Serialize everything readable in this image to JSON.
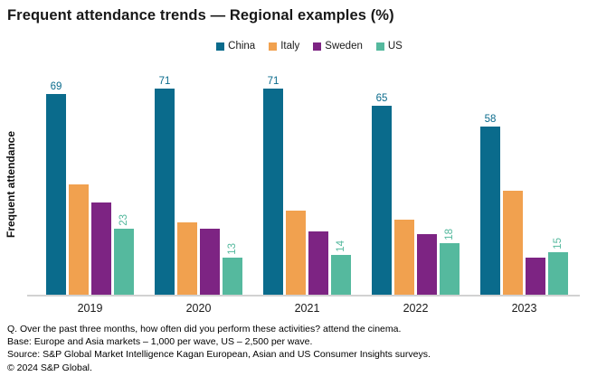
{
  "title": "Frequent attendance trends — Regional examples (%)",
  "chart_data": {
    "type": "bar",
    "title": "Frequent attendance trends — Regional examples (%)",
    "categories": [
      "2019",
      "2020",
      "2021",
      "2022",
      "2023"
    ],
    "series": [
      {
        "name": "China",
        "color": "#0A6B8C",
        "values": [
          69,
          71,
          71,
          65,
          58
        ],
        "data_labels": "horizontal"
      },
      {
        "name": "Italy",
        "color": "#F1A14F",
        "values": [
          38,
          25,
          29,
          26,
          36
        ],
        "data_labels": "none"
      },
      {
        "name": "Sweden",
        "color": "#7D2483",
        "values": [
          32,
          23,
          22,
          21,
          13
        ],
        "data_labels": "none"
      },
      {
        "name": "US",
        "color": "#55B99E",
        "values": [
          23,
          13,
          14,
          18,
          15
        ],
        "data_labels": "rotated"
      }
    ],
    "xlabel": "",
    "ylabel": "Frequent attendance",
    "ylim": [
      0,
      75
    ],
    "grid": false,
    "y_axis_ticks_shown": false,
    "legend_position": "top-center",
    "labeled_series": [
      "China",
      "US"
    ],
    "axis_line_color": "#d2d2d2"
  },
  "footnotes": {
    "question": "Q. Over the past three months, how often did you perform these activities? attend the cinema.",
    "base": "Base: Europe and Asia markets – 1,000 per wave, US – 2,500 per wave.",
    "source": "Source: S&P Global Market Intelligence Kagan European, Asian and US Consumer Insights surveys.",
    "copyright": "© 2024 S&P Global."
  }
}
